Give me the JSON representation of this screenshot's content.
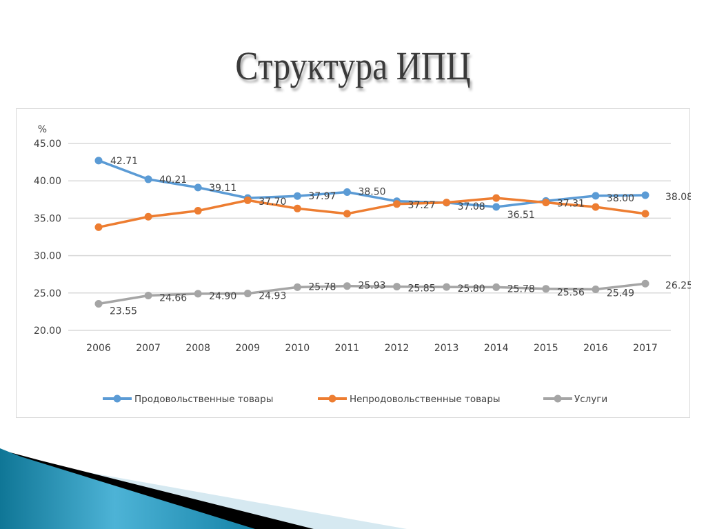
{
  "slide": {
    "title": "Структура ИПЦ"
  },
  "chart_data": {
    "type": "line",
    "title": "",
    "ylabel": "%",
    "xlabel": "",
    "ylim": [
      20,
      45
    ],
    "yticks": [
      "20.00",
      "25.00",
      "30.00",
      "35.00",
      "40.00",
      "45.00"
    ],
    "grid": true,
    "legend_position": "bottom",
    "categories": [
      "2006",
      "2007",
      "2008",
      "2009",
      "2010",
      "2011",
      "2012",
      "2013",
      "2014",
      "2015",
      "2016",
      "2017"
    ],
    "series": [
      {
        "name": "Продовольственные товары",
        "color": "#5b9bd5",
        "values": [
          42.71,
          40.21,
          39.11,
          37.7,
          37.97,
          38.5,
          37.27,
          37.08,
          36.51,
          37.31,
          38.0,
          38.08
        ],
        "labels": [
          "42.71",
          "40.21",
          "39.11",
          "37.70",
          "37.97",
          "38.50",
          "37.27",
          "37.08",
          "36.51",
          "37.31",
          "38.00",
          "38.08"
        ]
      },
      {
        "name": "Непродовольственные товары",
        "color": "#ed7d31",
        "values": [
          33.8,
          35.2,
          36.0,
          37.4,
          36.3,
          35.6,
          36.9,
          37.1,
          37.7,
          37.1,
          36.5,
          35.6
        ],
        "labels": []
      },
      {
        "name": "Услуги",
        "color": "#a5a5a5",
        "values": [
          23.55,
          24.66,
          24.9,
          24.93,
          25.78,
          25.93,
          25.85,
          25.8,
          25.78,
          25.56,
          25.49,
          26.25
        ],
        "labels": [
          "23.55",
          "24.66",
          "24.90",
          "24.93",
          "25.78",
          "25.93",
          "25.85",
          "25.80",
          "25.78",
          "25.56",
          "25.49",
          "26.25"
        ]
      }
    ]
  },
  "colors": {
    "food": "#5b9bd5",
    "nonfood": "#ed7d31",
    "services": "#a5a5a5",
    "grid": "#d9d9d9",
    "text": "#404040",
    "decor_blue": "#1f8fb3",
    "decor_light": "#d6e9f1"
  }
}
